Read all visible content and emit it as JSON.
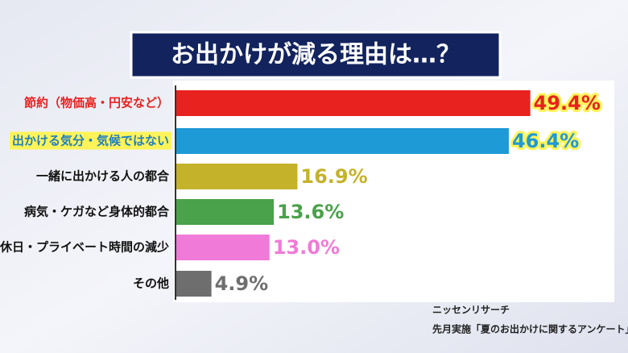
{
  "chart_data": {
    "type": "hbar",
    "title": "お出かけが減る理由は…？",
    "categories": [
      "節約（物価高・円安など）",
      "出かける気分・気候ではない",
      "一緒に出かける人の都合",
      "病気・ケガなど身体的都合",
      "休日・プライベート時間の減少",
      "その他"
    ],
    "values": [
      49.4,
      46.4,
      16.9,
      13.6,
      13.0,
      4.9
    ],
    "value_labels": [
      "49.4%",
      "46.4%",
      "16.9%",
      "13.6%",
      "13.0%",
      "4.9%"
    ],
    "colors": [
      "#e8221e",
      "#1e9ad6",
      "#c4b22a",
      "#4aa24a",
      "#f07ad8",
      "#6e6e6e"
    ],
    "xlim": [
      0,
      50
    ],
    "source": [
      "ニッセンリサーチ",
      "先月実施「夏のお出かけに関するアンケート」"
    ]
  }
}
